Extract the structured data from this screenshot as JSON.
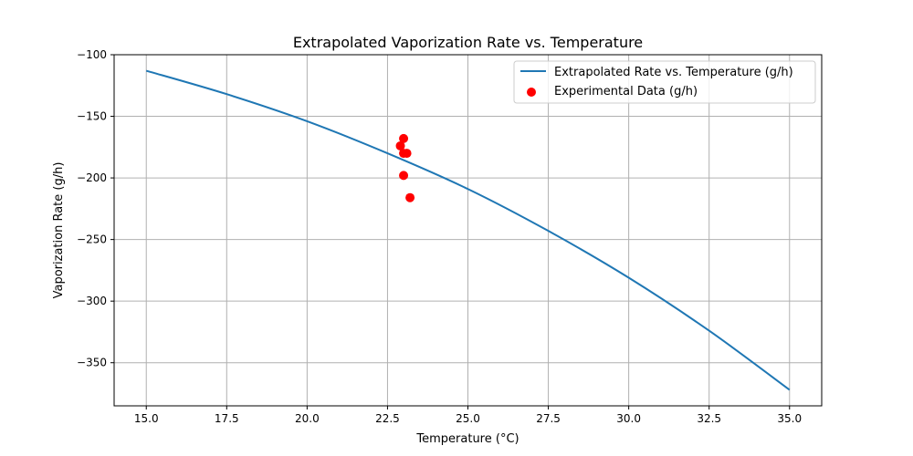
{
  "chart_data": {
    "type": "line",
    "title": "Extrapolated Vaporization Rate vs. Temperature",
    "xlabel": "Temperature (°C)",
    "ylabel": "Vaporization Rate (g/h)",
    "xlim": [
      14.0,
      36.0
    ],
    "ylim": [
      -385,
      -100
    ],
    "xticks": [
      15.0,
      17.5,
      20.0,
      22.5,
      25.0,
      27.5,
      30.0,
      32.5,
      35.0
    ],
    "xtick_labels": [
      "15.0",
      "17.5",
      "20.0",
      "22.5",
      "25.0",
      "27.5",
      "30.0",
      "32.5",
      "35.0"
    ],
    "yticks": [
      -100,
      -150,
      -200,
      -250,
      -300,
      -350
    ],
    "ytick_labels": [
      "−100",
      "−150",
      "−200",
      "−250",
      "−300",
      "−350"
    ],
    "grid": true,
    "legend_position": "top-right",
    "series": [
      {
        "name": "Extrapolated Rate vs. Temperature (g/h)",
        "type": "line",
        "color": "#1f77b4",
        "x": [
          15.0,
          17.5,
          20.0,
          22.5,
          25.0,
          27.5,
          30.0,
          32.5,
          35.0
        ],
        "y": [
          -113,
          -132,
          -154,
          -180,
          -209,
          -243,
          -281,
          -324,
          -372
        ]
      },
      {
        "name": "Experimental Data (g/h)",
        "type": "scatter",
        "color": "#ff0000",
        "x": [
          23.0,
          22.9,
          23.0,
          23.1,
          23.0,
          23.2
        ],
        "y": [
          -168,
          -174,
          -180,
          -180,
          -198,
          -216
        ]
      }
    ]
  }
}
